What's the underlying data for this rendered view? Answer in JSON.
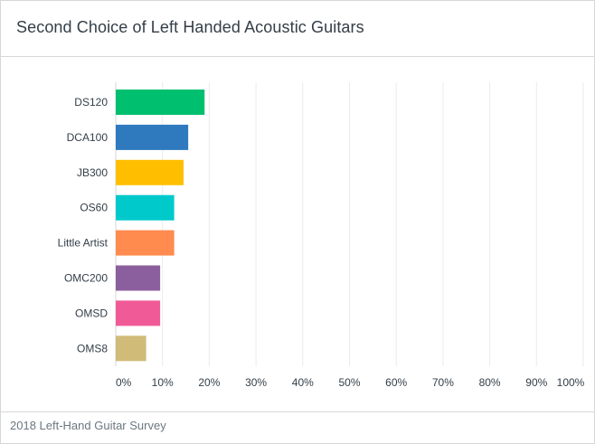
{
  "chart_data": {
    "type": "bar",
    "orientation": "horizontal",
    "title": "Second Choice of Left Handed Acoustic Guitars",
    "categories": [
      "DS120",
      "DCA100",
      "JB300",
      "OS60",
      "Little Artist",
      "OMC200",
      "OMSD",
      "OMS8"
    ],
    "values": [
      19,
      15.5,
      14.5,
      12.5,
      12.5,
      9.5,
      9.5,
      6.5
    ],
    "value_unit": "%",
    "xlim": [
      0,
      100
    ],
    "xticks": [
      "0%",
      "10%",
      "20%",
      "30%",
      "40%",
      "50%",
      "60%",
      "70%",
      "80%",
      "90%",
      "100%"
    ],
    "xlabel": "",
    "ylabel": "",
    "grid": true,
    "colors": [
      "#00bf6f",
      "#2f7abf",
      "#ffbf00",
      "#00c9cc",
      "#ff8b4f",
      "#8b5f9d",
      "#f05b97",
      "#d0bb79"
    ]
  },
  "footer": {
    "source": "2018 Left-Hand Guitar Survey"
  },
  "colors": {
    "title_text": "#333e48",
    "footer_text": "#6b787f",
    "gridline": "#ebebeb",
    "border": "#d6d7d8"
  }
}
